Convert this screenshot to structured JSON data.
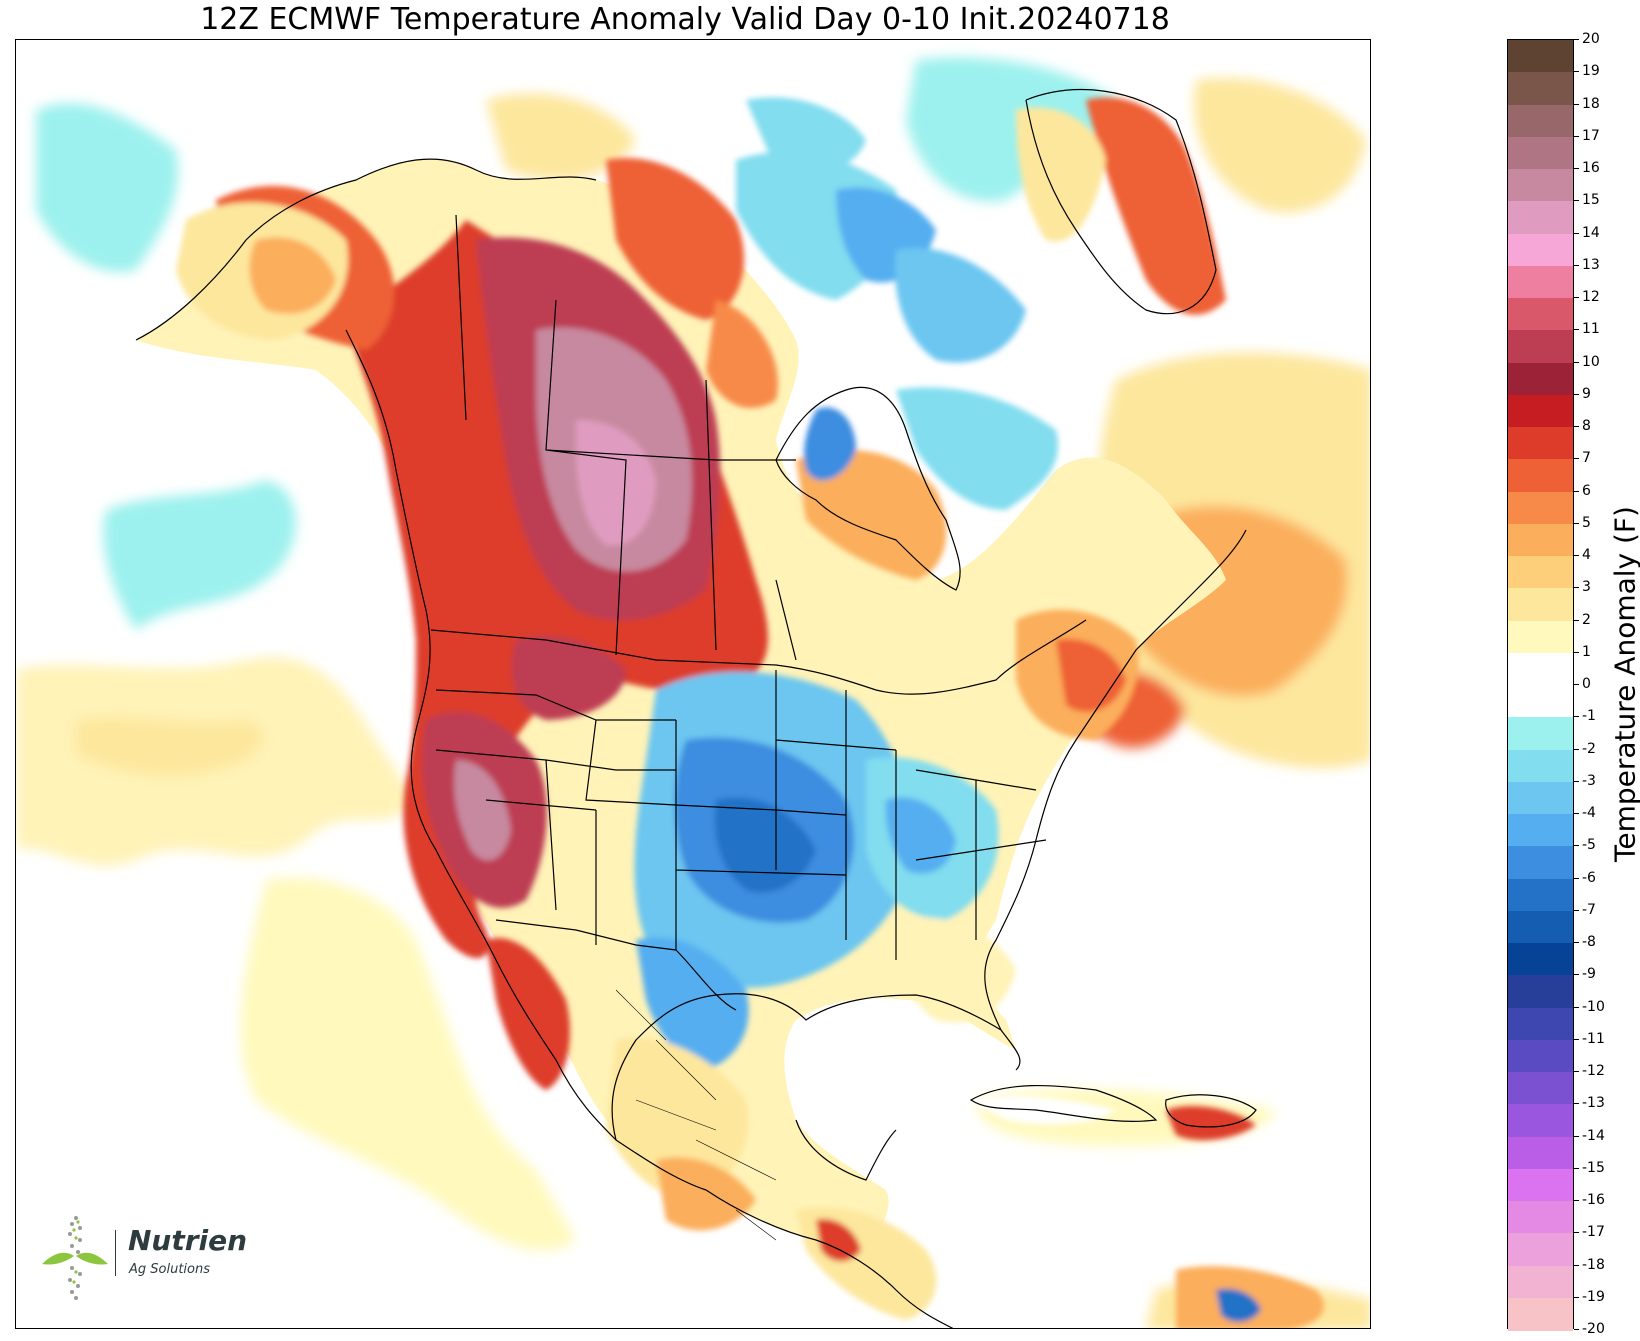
{
  "title": "12Z ECMWF Temperature Anomaly Valid Day 0-10 Init.20240718",
  "colorbar": {
    "label": "Temperature Anomaly (F)",
    "ticks": [
      "20",
      "19",
      "18",
      "17",
      "16",
      "15",
      "14",
      "13",
      "12",
      "11",
      "10",
      "9",
      "8",
      "7",
      "6",
      "5",
      "4",
      "3",
      "2",
      "1",
      "0",
      "-1",
      "-2",
      "-3",
      "-4",
      "-5",
      "-6",
      "-7",
      "-8",
      "-9",
      "-10",
      "-11",
      "-12",
      "-13",
      "-14",
      "-15",
      "-16",
      "-17",
      "-18",
      "-19",
      "-20"
    ],
    "colors_top_to_bottom": [
      "#5e4232",
      "#7a554a",
      "#97676a",
      "#b07585",
      "#c7899f",
      "#e09cc0",
      "#f7a6d8",
      "#ee7fa0",
      "#d9586a",
      "#bd3d52",
      "#9b2237",
      "#c51d22",
      "#dd3c2b",
      "#ee6136",
      "#f78a48",
      "#fbae5c",
      "#fdcf7b",
      "#fde79d",
      "#fff9bd",
      "#ffffff",
      "#ffffff",
      "#9cf1ee",
      "#82ddef",
      "#6cc6f0",
      "#55aef0",
      "#3d8de0",
      "#2472c7",
      "#145db0",
      "#064296",
      "#283f9a",
      "#3e46b0",
      "#5a4bc2",
      "#7b50d1",
      "#9b56df",
      "#ba5ee8",
      "#db72ef",
      "#e48ae4",
      "#eca0dc",
      "#f2b3d2",
      "#f7c3c6"
    ]
  },
  "logo": {
    "brand": "Nutrien",
    "subtitle": "Ag Solutions"
  }
}
